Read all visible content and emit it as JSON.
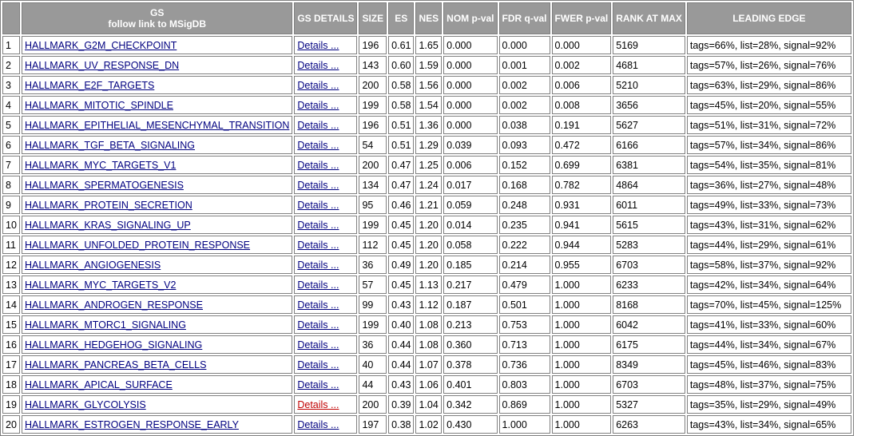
{
  "headers": {
    "gs_title": "GS",
    "gs_subtitle": "follow link to MSigDB",
    "gs_details": "GS DETAILS",
    "size": "SIZE",
    "es": "ES",
    "nes": "NES",
    "nom_pval": "NOM p-val",
    "fdr_qval": "FDR q-val",
    "fwer_pval": "FWER p-val",
    "rank_at_max": "RANK AT MAX",
    "leading_edge": "LEADING EDGE"
  },
  "details_label": "Details ...",
  "colors": {
    "header_bg": "#999999",
    "link": "#000080",
    "visited_link": "#c00000"
  },
  "rows": [
    {
      "idx": "1",
      "name": "HALLMARK_G2M_CHECKPOINT",
      "size": "196",
      "es": "0.61",
      "nes": "1.65",
      "nom": "0.000",
      "fdr": "0.000",
      "fwer": "0.000",
      "rank": "5169",
      "leading": "tags=66%, list=28%, signal=92%"
    },
    {
      "idx": "2",
      "name": "HALLMARK_UV_RESPONSE_DN",
      "size": "143",
      "es": "0.60",
      "nes": "1.59",
      "nom": "0.000",
      "fdr": "0.001",
      "fwer": "0.002",
      "rank": "4681",
      "leading": "tags=57%, list=26%, signal=76%"
    },
    {
      "idx": "3",
      "name": "HALLMARK_E2F_TARGETS",
      "size": "200",
      "es": "0.58",
      "nes": "1.56",
      "nom": "0.000",
      "fdr": "0.002",
      "fwer": "0.006",
      "rank": "5210",
      "leading": "tags=63%, list=29%, signal=86%"
    },
    {
      "idx": "4",
      "name": "HALLMARK_MITOTIC_SPINDLE",
      "size": "199",
      "es": "0.58",
      "nes": "1.54",
      "nom": "0.000",
      "fdr": "0.002",
      "fwer": "0.008",
      "rank": "3656",
      "leading": "tags=45%, list=20%, signal=55%"
    },
    {
      "idx": "5",
      "name": "HALLMARK_EPITHELIAL_MESENCHYMAL_TRANSITION",
      "size": "196",
      "es": "0.51",
      "nes": "1.36",
      "nom": "0.000",
      "fdr": "0.038",
      "fwer": "0.191",
      "rank": "5627",
      "leading": "tags=51%, list=31%, signal=72%"
    },
    {
      "idx": "6",
      "name": "HALLMARK_TGF_BETA_SIGNALING",
      "size": "54",
      "es": "0.51",
      "nes": "1.29",
      "nom": "0.039",
      "fdr": "0.093",
      "fwer": "0.472",
      "rank": "6166",
      "leading": "tags=57%, list=34%, signal=86%"
    },
    {
      "idx": "7",
      "name": "HALLMARK_MYC_TARGETS_V1",
      "size": "200",
      "es": "0.47",
      "nes": "1.25",
      "nom": "0.006",
      "fdr": "0.152",
      "fwer": "0.699",
      "rank": "6381",
      "leading": "tags=54%, list=35%, signal=81%"
    },
    {
      "idx": "8",
      "name": "HALLMARK_SPERMATOGENESIS",
      "size": "134",
      "es": "0.47",
      "nes": "1.24",
      "nom": "0.017",
      "fdr": "0.168",
      "fwer": "0.782",
      "rank": "4864",
      "leading": "tags=36%, list=27%, signal=48%"
    },
    {
      "idx": "9",
      "name": "HALLMARK_PROTEIN_SECRETION",
      "size": "95",
      "es": "0.46",
      "nes": "1.21",
      "nom": "0.059",
      "fdr": "0.248",
      "fwer": "0.931",
      "rank": "6011",
      "leading": "tags=49%, list=33%, signal=73%"
    },
    {
      "idx": "10",
      "name": "HALLMARK_KRAS_SIGNALING_UP",
      "size": "199",
      "es": "0.45",
      "nes": "1.20",
      "nom": "0.014",
      "fdr": "0.235",
      "fwer": "0.941",
      "rank": "5615",
      "leading": "tags=43%, list=31%, signal=62%"
    },
    {
      "idx": "11",
      "name": "HALLMARK_UNFOLDED_PROTEIN_RESPONSE",
      "size": "112",
      "es": "0.45",
      "nes": "1.20",
      "nom": "0.058",
      "fdr": "0.222",
      "fwer": "0.944",
      "rank": "5283",
      "leading": "tags=44%, list=29%, signal=61%"
    },
    {
      "idx": "12",
      "name": "HALLMARK_ANGIOGENESIS",
      "size": "36",
      "es": "0.49",
      "nes": "1.20",
      "nom": "0.185",
      "fdr": "0.214",
      "fwer": "0.955",
      "rank": "6703",
      "leading": "tags=58%, list=37%, signal=92%"
    },
    {
      "idx": "13",
      "name": "HALLMARK_MYC_TARGETS_V2",
      "size": "57",
      "es": "0.45",
      "nes": "1.13",
      "nom": "0.217",
      "fdr": "0.479",
      "fwer": "1.000",
      "rank": "6233",
      "leading": "tags=42%, list=34%, signal=64%"
    },
    {
      "idx": "14",
      "name": "HALLMARK_ANDROGEN_RESPONSE",
      "size": "99",
      "es": "0.43",
      "nes": "1.12",
      "nom": "0.187",
      "fdr": "0.501",
      "fwer": "1.000",
      "rank": "8168",
      "leading": "tags=70%, list=45%, signal=125%"
    },
    {
      "idx": "15",
      "name": "HALLMARK_MTORC1_SIGNALING",
      "size": "199",
      "es": "0.40",
      "nes": "1.08",
      "nom": "0.213",
      "fdr": "0.753",
      "fwer": "1.000",
      "rank": "6042",
      "leading": "tags=41%, list=33%, signal=60%"
    },
    {
      "idx": "16",
      "name": "HALLMARK_HEDGEHOG_SIGNALING",
      "size": "36",
      "es": "0.44",
      "nes": "1.08",
      "nom": "0.360",
      "fdr": "0.713",
      "fwer": "1.000",
      "rank": "6175",
      "leading": "tags=44%, list=34%, signal=67%"
    },
    {
      "idx": "17",
      "name": "HALLMARK_PANCREAS_BETA_CELLS",
      "size": "40",
      "es": "0.44",
      "nes": "1.07",
      "nom": "0.378",
      "fdr": "0.736",
      "fwer": "1.000",
      "rank": "8349",
      "leading": "tags=45%, list=46%, signal=83%"
    },
    {
      "idx": "18",
      "name": "HALLMARK_APICAL_SURFACE",
      "size": "44",
      "es": "0.43",
      "nes": "1.06",
      "nom": "0.401",
      "fdr": "0.803",
      "fwer": "1.000",
      "rank": "6703",
      "leading": "tags=48%, list=37%, signal=75%"
    },
    {
      "idx": "19",
      "name": "HALLMARK_GLYCOLYSIS",
      "size": "200",
      "es": "0.39",
      "nes": "1.04",
      "nom": "0.342",
      "fdr": "0.869",
      "fwer": "1.000",
      "rank": "5327",
      "leading": "tags=35%, list=29%, signal=49%",
      "visited": true
    },
    {
      "idx": "20",
      "name": "HALLMARK_ESTROGEN_RESPONSE_EARLY",
      "size": "197",
      "es": "0.38",
      "nes": "1.02",
      "nom": "0.430",
      "fdr": "1.000",
      "fwer": "1.000",
      "rank": "6263",
      "leading": "tags=43%, list=34%, signal=65%"
    }
  ]
}
